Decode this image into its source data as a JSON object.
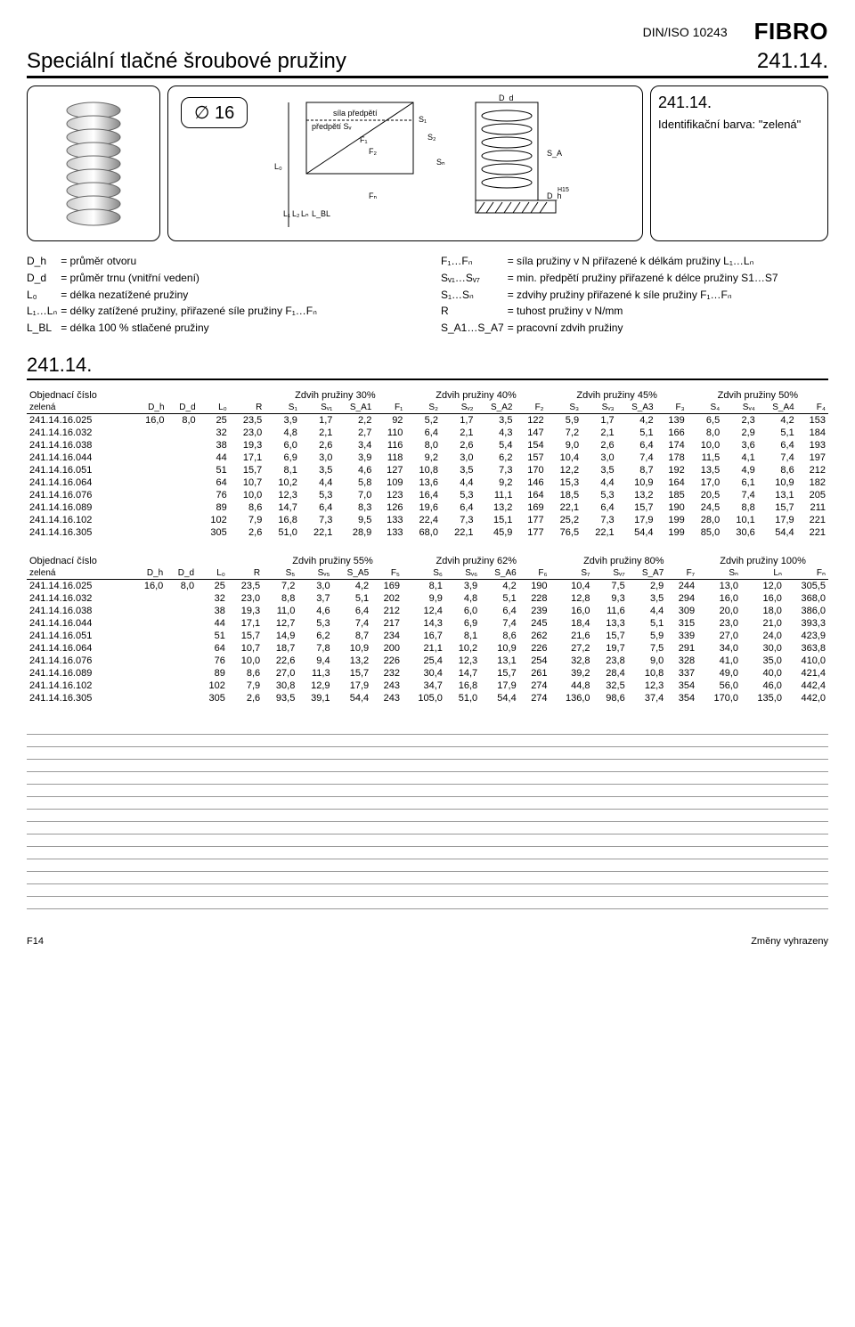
{
  "header": {
    "standard": "DIN/ISO 10243",
    "brand": "FIBRO"
  },
  "title": "Speciální tlačné šroubové pružiny",
  "title_code": "241.14.",
  "diameter_label": "∅ 16",
  "diagram_labels": {
    "preload": "předpětí Sᵥ",
    "preload_force": "síla předpětí",
    "F1": "F₁",
    "F2": "F₂",
    "Fn": "Fₙ",
    "S1": "S₁",
    "S2": "S₂",
    "Sn": "Sₙ",
    "L0": "L₀",
    "L1": "L₁",
    "L2": "L₂",
    "Ln": "Lₙ",
    "LBL": "L_BL",
    "Dd": "D_d",
    "Dh": "D_h",
    "SA": "S_A",
    "H15": "H15"
  },
  "info_panel": {
    "code": "241.14.",
    "ident": "Identifikační barva: \"zelená\""
  },
  "definitions": {
    "left": [
      [
        "D_h",
        "= průměr otvoru"
      ],
      [
        "D_d",
        "= průměr trnu (vnitřní vedení)"
      ],
      [
        "L₀",
        "= délka nezatížené pružiny"
      ],
      [
        "L₁…Lₙ",
        "= délky zatížené pružiny, přiřazené síle pružiny F₁…Fₙ"
      ],
      [
        "L_BL",
        "= délka 100 % stlačené pružiny"
      ]
    ],
    "right": [
      [
        "F₁…Fₙ",
        "= síla pružiny v N přiřazené k délkám pružiny L₁…Lₙ"
      ],
      [
        "Sᵥ₁…Sᵥ₇",
        "= min. předpětí pružiny přiřazené k délce pružiny S1…S7"
      ],
      [
        "S₁…Sₙ",
        "= zdvihy pružiny přiřazené k síle pružiny F₁…Fₙ"
      ],
      [
        "R",
        "= tuhost pružiny v N/mm"
      ],
      [
        "S_A1…S_A7",
        "= pracovní zdvih pružiny"
      ]
    ]
  },
  "section_code": "241.14.",
  "table1": {
    "order_label": "Objednací číslo",
    "color_label": "zelená",
    "groups": [
      "Zdvih pružiny 30%",
      "Zdvih pružiny 40%",
      "Zdvih pružiny 45%",
      "Zdvih pružiny 50%"
    ],
    "base_cols": [
      "D_h",
      "D_d",
      "L₀",
      "R"
    ],
    "group_cols": [
      [
        "S₁",
        "Sᵥ₁",
        "S_A1",
        "F₁"
      ],
      [
        "S₂",
        "Sᵥ₂",
        "S_A2",
        "F₂"
      ],
      [
        "S₃",
        "Sᵥ₃",
        "S_A3",
        "F₃"
      ],
      [
        "S₄",
        "Sᵥ₄",
        "S_A4",
        "F₄"
      ]
    ],
    "rows": [
      [
        "241.14.16.025",
        "16,0",
        "8,0",
        "25",
        "23,5",
        "3,9",
        "1,7",
        "2,2",
        "92",
        "5,2",
        "1,7",
        "3,5",
        "122",
        "5,9",
        "1,7",
        "4,2",
        "139",
        "6,5",
        "2,3",
        "4,2",
        "153"
      ],
      [
        "241.14.16.032",
        "",
        "",
        "32",
        "23,0",
        "4,8",
        "2,1",
        "2,7",
        "110",
        "6,4",
        "2,1",
        "4,3",
        "147",
        "7,2",
        "2,1",
        "5,1",
        "166",
        "8,0",
        "2,9",
        "5,1",
        "184"
      ],
      [
        "241.14.16.038",
        "",
        "",
        "38",
        "19,3",
        "6,0",
        "2,6",
        "3,4",
        "116",
        "8,0",
        "2,6",
        "5,4",
        "154",
        "9,0",
        "2,6",
        "6,4",
        "174",
        "10,0",
        "3,6",
        "6,4",
        "193"
      ],
      [
        "241.14.16.044",
        "",
        "",
        "44",
        "17,1",
        "6,9",
        "3,0",
        "3,9",
        "118",
        "9,2",
        "3,0",
        "6,2",
        "157",
        "10,4",
        "3,0",
        "7,4",
        "178",
        "11,5",
        "4,1",
        "7,4",
        "197"
      ],
      [
        "241.14.16.051",
        "",
        "",
        "51",
        "15,7",
        "8,1",
        "3,5",
        "4,6",
        "127",
        "10,8",
        "3,5",
        "7,3",
        "170",
        "12,2",
        "3,5",
        "8,7",
        "192",
        "13,5",
        "4,9",
        "8,6",
        "212"
      ],
      [
        "241.14.16.064",
        "",
        "",
        "64",
        "10,7",
        "10,2",
        "4,4",
        "5,8",
        "109",
        "13,6",
        "4,4",
        "9,2",
        "146",
        "15,3",
        "4,4",
        "10,9",
        "164",
        "17,0",
        "6,1",
        "10,9",
        "182"
      ],
      [
        "241.14.16.076",
        "",
        "",
        "76",
        "10,0",
        "12,3",
        "5,3",
        "7,0",
        "123",
        "16,4",
        "5,3",
        "11,1",
        "164",
        "18,5",
        "5,3",
        "13,2",
        "185",
        "20,5",
        "7,4",
        "13,1",
        "205"
      ],
      [
        "241.14.16.089",
        "",
        "",
        "89",
        "8,6",
        "14,7",
        "6,4",
        "8,3",
        "126",
        "19,6",
        "6,4",
        "13,2",
        "169",
        "22,1",
        "6,4",
        "15,7",
        "190",
        "24,5",
        "8,8",
        "15,7",
        "211"
      ],
      [
        "241.14.16.102",
        "",
        "",
        "102",
        "7,9",
        "16,8",
        "7,3",
        "9,5",
        "133",
        "22,4",
        "7,3",
        "15,1",
        "177",
        "25,2",
        "7,3",
        "17,9",
        "199",
        "28,0",
        "10,1",
        "17,9",
        "221"
      ],
      [
        "241.14.16.305",
        "",
        "",
        "305",
        "2,6",
        "51,0",
        "22,1",
        "28,9",
        "133",
        "68,0",
        "22,1",
        "45,9",
        "177",
        "76,5",
        "22,1",
        "54,4",
        "199",
        "85,0",
        "30,6",
        "54,4",
        "221"
      ]
    ]
  },
  "table2": {
    "order_label": "Objednací číslo",
    "color_label": "zelená",
    "groups": [
      "Zdvih pružiny 55%",
      "Zdvih pružiny 62%",
      "Zdvih pružiny 80%",
      "Zdvih pružiny 100%"
    ],
    "base_cols": [
      "D_h",
      "D_d",
      "L₀",
      "R"
    ],
    "group_cols": [
      [
        "S₅",
        "Sᵥ₅",
        "S_A5",
        "F₅"
      ],
      [
        "S₆",
        "Sᵥ₆",
        "S_A6",
        "F₆"
      ],
      [
        "S₇",
        "Sᵥ₇",
        "S_A7",
        "F₇"
      ],
      [
        "Sₙ",
        "Lₙ",
        "Fₙ"
      ]
    ],
    "rows": [
      [
        "241.14.16.025",
        "16,0",
        "8,0",
        "25",
        "23,5",
        "7,2",
        "3,0",
        "4,2",
        "169",
        "8,1",
        "3,9",
        "4,2",
        "190",
        "10,4",
        "7,5",
        "2,9",
        "244",
        "13,0",
        "12,0",
        "305,5"
      ],
      [
        "241.14.16.032",
        "",
        "",
        "32",
        "23,0",
        "8,8",
        "3,7",
        "5,1",
        "202",
        "9,9",
        "4,8",
        "5,1",
        "228",
        "12,8",
        "9,3",
        "3,5",
        "294",
        "16,0",
        "16,0",
        "368,0"
      ],
      [
        "241.14.16.038",
        "",
        "",
        "38",
        "19,3",
        "11,0",
        "4,6",
        "6,4",
        "212",
        "12,4",
        "6,0",
        "6,4",
        "239",
        "16,0",
        "11,6",
        "4,4",
        "309",
        "20,0",
        "18,0",
        "386,0"
      ],
      [
        "241.14.16.044",
        "",
        "",
        "44",
        "17,1",
        "12,7",
        "5,3",
        "7,4",
        "217",
        "14,3",
        "6,9",
        "7,4",
        "245",
        "18,4",
        "13,3",
        "5,1",
        "315",
        "23,0",
        "21,0",
        "393,3"
      ],
      [
        "241.14.16.051",
        "",
        "",
        "51",
        "15,7",
        "14,9",
        "6,2",
        "8,7",
        "234",
        "16,7",
        "8,1",
        "8,6",
        "262",
        "21,6",
        "15,7",
        "5,9",
        "339",
        "27,0",
        "24,0",
        "423,9"
      ],
      [
        "241.14.16.064",
        "",
        "",
        "64",
        "10,7",
        "18,7",
        "7,8",
        "10,9",
        "200",
        "21,1",
        "10,2",
        "10,9",
        "226",
        "27,2",
        "19,7",
        "7,5",
        "291",
        "34,0",
        "30,0",
        "363,8"
      ],
      [
        "241.14.16.076",
        "",
        "",
        "76",
        "10,0",
        "22,6",
        "9,4",
        "13,2",
        "226",
        "25,4",
        "12,3",
        "13,1",
        "254",
        "32,8",
        "23,8",
        "9,0",
        "328",
        "41,0",
        "35,0",
        "410,0"
      ],
      [
        "241.14.16.089",
        "",
        "",
        "89",
        "8,6",
        "27,0",
        "11,3",
        "15,7",
        "232",
        "30,4",
        "14,7",
        "15,7",
        "261",
        "39,2",
        "28,4",
        "10,8",
        "337",
        "49,0",
        "40,0",
        "421,4"
      ],
      [
        "241.14.16.102",
        "",
        "",
        "102",
        "7,9",
        "30,8",
        "12,9",
        "17,9",
        "243",
        "34,7",
        "16,8",
        "17,9",
        "274",
        "44,8",
        "32,5",
        "12,3",
        "354",
        "56,0",
        "46,0",
        "442,4"
      ],
      [
        "241.14.16.305",
        "",
        "",
        "305",
        "2,6",
        "93,5",
        "39,1",
        "54,4",
        "243",
        "105,0",
        "51,0",
        "54,4",
        "274",
        "136,0",
        "98,6",
        "37,4",
        "354",
        "170,0",
        "135,0",
        "442,0"
      ]
    ]
  },
  "footer": {
    "left": "F14",
    "right": "Změny vyhrazeny"
  },
  "rule_line_count": 15
}
